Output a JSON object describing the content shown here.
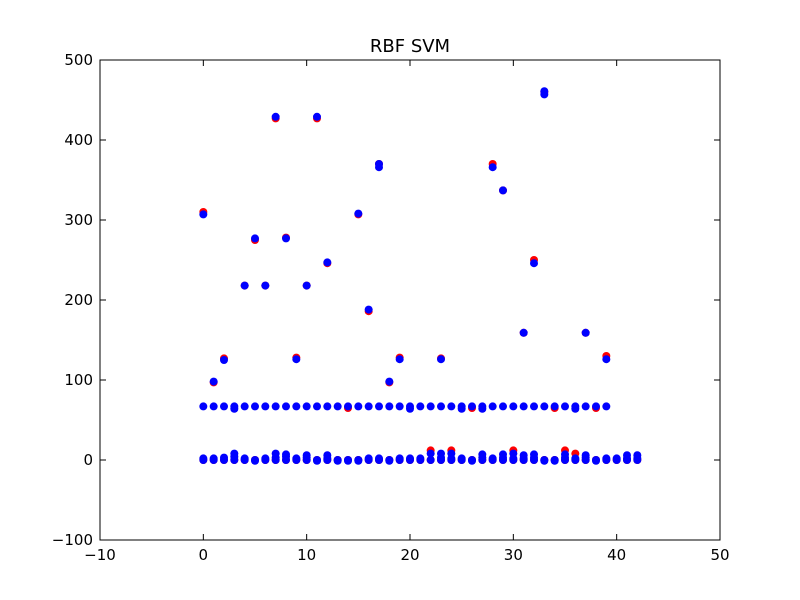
{
  "chart_data": {
    "type": "scatter",
    "title": "RBF SVM",
    "xlabel": "",
    "ylabel": "",
    "xlim": [
      -10,
      50
    ],
    "ylim": [
      -100,
      500
    ],
    "xticks": [
      -10,
      0,
      10,
      20,
      30,
      40,
      50
    ],
    "yticks": [
      -100,
      0,
      100,
      200,
      300,
      400,
      500
    ],
    "grid": false,
    "legend": "none",
    "series": [
      {
        "color": "#ff0000",
        "points": [
          [
            0,
            310
          ],
          [
            1,
            97
          ],
          [
            2,
            127
          ],
          [
            4,
            218
          ],
          [
            5,
            275
          ],
          [
            6,
            218
          ],
          [
            7,
            427
          ],
          [
            8,
            278
          ],
          [
            9,
            128
          ],
          [
            10,
            218
          ],
          [
            11,
            427
          ],
          [
            12,
            246
          ],
          [
            14,
            65
          ],
          [
            15,
            307
          ],
          [
            16,
            186
          ],
          [
            17,
            370
          ],
          [
            18,
            97
          ],
          [
            19,
            128
          ],
          [
            23,
            127
          ],
          [
            28,
            370
          ],
          [
            29,
            337
          ],
          [
            32,
            250
          ],
          [
            33,
            460
          ],
          [
            34,
            65
          ],
          [
            31,
            159
          ],
          [
            37,
            159
          ],
          [
            38,
            65
          ],
          [
            39,
            130
          ],
          [
            26,
            65
          ],
          [
            22,
            12
          ],
          [
            24,
            12
          ],
          [
            35,
            12
          ],
          [
            36,
            8
          ],
          [
            30,
            12
          ],
          [
            0,
            0
          ],
          [
            1,
            0
          ],
          [
            2,
            0
          ],
          [
            3,
            0
          ],
          [
            4,
            0
          ],
          [
            5,
            0
          ],
          [
            6,
            0
          ],
          [
            7,
            0
          ],
          [
            8,
            0
          ],
          [
            9,
            0
          ],
          [
            10,
            0
          ],
          [
            11,
            0
          ],
          [
            12,
            0
          ],
          [
            13,
            0
          ],
          [
            14,
            0
          ],
          [
            15,
            0
          ],
          [
            16,
            0
          ],
          [
            17,
            0
          ],
          [
            18,
            0
          ],
          [
            19,
            0
          ],
          [
            20,
            0
          ],
          [
            21,
            0
          ],
          [
            22,
            0
          ],
          [
            23,
            0
          ],
          [
            24,
            0
          ],
          [
            25,
            0
          ],
          [
            26,
            0
          ],
          [
            27,
            0
          ],
          [
            28,
            0
          ],
          [
            29,
            0
          ],
          [
            30,
            0
          ],
          [
            31,
            0
          ],
          [
            32,
            0
          ],
          [
            33,
            0
          ],
          [
            34,
            0
          ],
          [
            35,
            0
          ],
          [
            36,
            0
          ],
          [
            37,
            0
          ],
          [
            38,
            0
          ],
          [
            39,
            0
          ],
          [
            40,
            0
          ],
          [
            41,
            0
          ],
          [
            42,
            0
          ]
        ]
      },
      {
        "color": "#0000ff",
        "points": [
          [
            0,
            307
          ],
          [
            1,
            98
          ],
          [
            2,
            125
          ],
          [
            4,
            218
          ],
          [
            5,
            277
          ],
          [
            6,
            218
          ],
          [
            7,
            429
          ],
          [
            8,
            277
          ],
          [
            9,
            126
          ],
          [
            10,
            218
          ],
          [
            11,
            429
          ],
          [
            12,
            247
          ],
          [
            15,
            308
          ],
          [
            16,
            188
          ],
          [
            17,
            366
          ],
          [
            17,
            370
          ],
          [
            18,
            98
          ],
          [
            19,
            126
          ],
          [
            23,
            126
          ],
          [
            28,
            366
          ],
          [
            29,
            337
          ],
          [
            31,
            159
          ],
          [
            32,
            246
          ],
          [
            33,
            457
          ],
          [
            33,
            461
          ],
          [
            37,
            159
          ],
          [
            39,
            126
          ],
          [
            0,
            67
          ],
          [
            1,
            67
          ],
          [
            2,
            67
          ],
          [
            3,
            64
          ],
          [
            3,
            67
          ],
          [
            4,
            67
          ],
          [
            5,
            67
          ],
          [
            6,
            67
          ],
          [
            7,
            67
          ],
          [
            8,
            67
          ],
          [
            9,
            67
          ],
          [
            10,
            67
          ],
          [
            11,
            67
          ],
          [
            12,
            67
          ],
          [
            13,
            67
          ],
          [
            14,
            67
          ],
          [
            15,
            67
          ],
          [
            16,
            67
          ],
          [
            17,
            67
          ],
          [
            18,
            67
          ],
          [
            19,
            67
          ],
          [
            20,
            64
          ],
          [
            20,
            67
          ],
          [
            21,
            67
          ],
          [
            22,
            67
          ],
          [
            23,
            67
          ],
          [
            24,
            67
          ],
          [
            25,
            64
          ],
          [
            25,
            67
          ],
          [
            26,
            67
          ],
          [
            27,
            64
          ],
          [
            27,
            67
          ],
          [
            28,
            67
          ],
          [
            29,
            67
          ],
          [
            30,
            67
          ],
          [
            31,
            67
          ],
          [
            32,
            67
          ],
          [
            33,
            67
          ],
          [
            34,
            67
          ],
          [
            35,
            67
          ],
          [
            36,
            64
          ],
          [
            36,
            67
          ],
          [
            37,
            67
          ],
          [
            38,
            67
          ],
          [
            39,
            67
          ],
          [
            0,
            0
          ],
          [
            0,
            2
          ],
          [
            1,
            0
          ],
          [
            1,
            2
          ],
          [
            2,
            0
          ],
          [
            2,
            3
          ],
          [
            3,
            0
          ],
          [
            3,
            4
          ],
          [
            3,
            8
          ],
          [
            4,
            0
          ],
          [
            4,
            2
          ],
          [
            5,
            0
          ],
          [
            5,
            -1
          ],
          [
            6,
            0
          ],
          [
            6,
            2
          ],
          [
            7,
            0
          ],
          [
            7,
            3
          ],
          [
            7,
            8
          ],
          [
            8,
            0
          ],
          [
            8,
            4
          ],
          [
            8,
            7
          ],
          [
            9,
            0
          ],
          [
            9,
            2
          ],
          [
            10,
            0
          ],
          [
            10,
            3
          ],
          [
            10,
            6
          ],
          [
            11,
            0
          ],
          [
            11,
            -1
          ],
          [
            12,
            0
          ],
          [
            12,
            2
          ],
          [
            12,
            6
          ],
          [
            13,
            0
          ],
          [
            13,
            -1
          ],
          [
            14,
            0
          ],
          [
            14,
            -1
          ],
          [
            15,
            0
          ],
          [
            15,
            -1
          ],
          [
            16,
            0
          ],
          [
            16,
            2
          ],
          [
            17,
            0
          ],
          [
            17,
            2
          ],
          [
            18,
            0
          ],
          [
            18,
            -1
          ],
          [
            19,
            0
          ],
          [
            19,
            2
          ],
          [
            20,
            0
          ],
          [
            20,
            2
          ],
          [
            21,
            0
          ],
          [
            21,
            2
          ],
          [
            22,
            0
          ],
          [
            22,
            8
          ],
          [
            23,
            0
          ],
          [
            23,
            3
          ],
          [
            23,
            8
          ],
          [
            24,
            0
          ],
          [
            24,
            2
          ],
          [
            24,
            8
          ],
          [
            25,
            0
          ],
          [
            25,
            2
          ],
          [
            26,
            0
          ],
          [
            26,
            -1
          ],
          [
            27,
            0
          ],
          [
            27,
            3
          ],
          [
            27,
            7
          ],
          [
            28,
            0
          ],
          [
            28,
            2
          ],
          [
            29,
            0
          ],
          [
            29,
            3
          ],
          [
            29,
            7
          ],
          [
            30,
            0
          ],
          [
            30,
            2
          ],
          [
            30,
            8
          ],
          [
            31,
            0
          ],
          [
            31,
            2
          ],
          [
            31,
            6
          ],
          [
            32,
            0
          ],
          [
            32,
            3
          ],
          [
            32,
            7
          ],
          [
            33,
            0
          ],
          [
            33,
            -1
          ],
          [
            34,
            0
          ],
          [
            34,
            -1
          ],
          [
            35,
            0
          ],
          [
            35,
            3
          ],
          [
            35,
            7
          ],
          [
            36,
            0
          ],
          [
            36,
            2
          ],
          [
            37,
            0
          ],
          [
            37,
            3
          ],
          [
            37,
            6
          ],
          [
            38,
            0
          ],
          [
            38,
            -1
          ],
          [
            39,
            0
          ],
          [
            39,
            2
          ],
          [
            40,
            0
          ],
          [
            40,
            2
          ],
          [
            41,
            0
          ],
          [
            41,
            2
          ],
          [
            41,
            6
          ],
          [
            42,
            0
          ],
          [
            42,
            2
          ],
          [
            42,
            6
          ]
        ]
      }
    ]
  }
}
